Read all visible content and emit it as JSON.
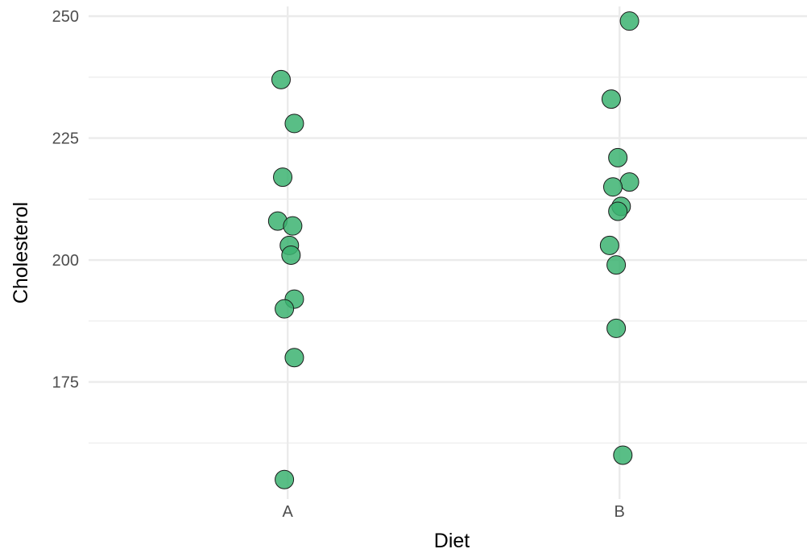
{
  "chart_data": {
    "type": "scatter",
    "xlabel": "Diet",
    "ylabel": "Cholesterol",
    "categories": [
      "A",
      "B"
    ],
    "ylim": [
      151,
      252
    ],
    "y_ticks": [
      175,
      200,
      225,
      250
    ],
    "grid": true,
    "point_color": "#3cb371",
    "point_stroke": "#1a1a1a",
    "series": [
      {
        "category": "A",
        "points": [
          {
            "jitter": -0.02,
            "y": 237
          },
          {
            "jitter": 0.02,
            "y": 228
          },
          {
            "jitter": -0.015,
            "y": 217
          },
          {
            "jitter": -0.03,
            "y": 208
          },
          {
            "jitter": 0.015,
            "y": 207
          },
          {
            "jitter": 0.005,
            "y": 203
          },
          {
            "jitter": 0.01,
            "y": 201
          },
          {
            "jitter": 0.02,
            "y": 192
          },
          {
            "jitter": -0.01,
            "y": 190
          },
          {
            "jitter": 0.02,
            "y": 180
          },
          {
            "jitter": -0.01,
            "y": 155
          }
        ]
      },
      {
        "category": "B",
        "points": [
          {
            "jitter": 0.03,
            "y": 249
          },
          {
            "jitter": -0.025,
            "y": 233
          },
          {
            "jitter": -0.005,
            "y": 221
          },
          {
            "jitter": 0.03,
            "y": 216
          },
          {
            "jitter": -0.02,
            "y": 215
          },
          {
            "jitter": 0.005,
            "y": 211
          },
          {
            "jitter": -0.005,
            "y": 210
          },
          {
            "jitter": -0.03,
            "y": 203
          },
          {
            "jitter": -0.01,
            "y": 199
          },
          {
            "jitter": -0.01,
            "y": 186
          },
          {
            "jitter": 0.01,
            "y": 160
          }
        ]
      }
    ]
  }
}
